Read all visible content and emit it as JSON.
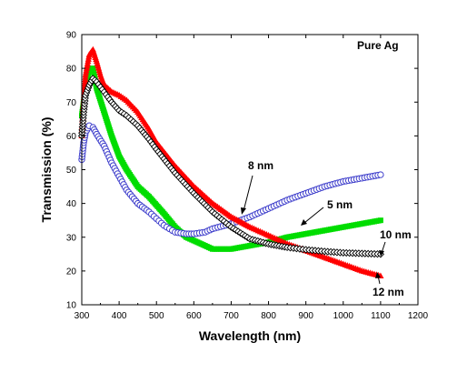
{
  "chart_data": {
    "type": "scatter",
    "title": "",
    "xlabel": "Wavelength (nm)",
    "ylabel": "Transmission (%)",
    "xlim": [
      300,
      1200
    ],
    "ylim": [
      10,
      90
    ],
    "x_ticks": [
      300,
      400,
      500,
      600,
      700,
      800,
      900,
      1000,
      1100,
      1200
    ],
    "y_ticks": [
      10,
      20,
      30,
      40,
      50,
      60,
      70,
      80,
      90
    ],
    "grid": false,
    "legend": "none",
    "annotations": {
      "inset": "Pure Ag",
      "label_5": "5 nm",
      "label_8": "8 nm",
      "label_10": "10 nm",
      "label_12": "12 nm"
    },
    "series": [
      {
        "key": "pure",
        "color": "#00dd00",
        "marker": "square",
        "points": [
          [
            300,
            66
          ],
          [
            310,
            74
          ],
          [
            320,
            80
          ],
          [
            330,
            80
          ],
          [
            340,
            74
          ],
          [
            360,
            67
          ],
          [
            380,
            60
          ],
          [
            400,
            54
          ],
          [
            420,
            50
          ],
          [
            450,
            45
          ],
          [
            480,
            42
          ],
          [
            500,
            39.5
          ],
          [
            520,
            37
          ],
          [
            550,
            33
          ],
          [
            580,
            30
          ],
          [
            600,
            29
          ],
          [
            620,
            28
          ],
          [
            650,
            26.5
          ],
          [
            700,
            26.5
          ],
          [
            750,
            27.5
          ],
          [
            800,
            28.5
          ],
          [
            850,
            30
          ],
          [
            900,
            31
          ],
          [
            950,
            32
          ],
          [
            1000,
            33
          ],
          [
            1050,
            34
          ],
          [
            1100,
            35
          ]
        ]
      },
      {
        "key": "5nm",
        "color": "#4040cc",
        "marker": "circle",
        "points": [
          [
            300,
            53
          ],
          [
            305,
            58
          ],
          [
            310,
            61
          ],
          [
            320,
            63
          ],
          [
            330,
            62.5
          ],
          [
            340,
            60.5
          ],
          [
            360,
            57
          ],
          [
            380,
            52
          ],
          [
            400,
            48
          ],
          [
            420,
            44
          ],
          [
            450,
            40
          ],
          [
            480,
            37.5
          ],
          [
            500,
            35.5
          ],
          [
            520,
            33.5
          ],
          [
            550,
            31.5
          ],
          [
            580,
            31
          ],
          [
            600,
            31
          ],
          [
            630,
            31.5
          ],
          [
            650,
            32.5
          ],
          [
            700,
            34
          ],
          [
            750,
            36
          ],
          [
            800,
            38.5
          ],
          [
            850,
            41
          ],
          [
            900,
            43
          ],
          [
            950,
            45
          ],
          [
            1000,
            46.5
          ],
          [
            1050,
            47.5
          ],
          [
            1100,
            48.5
          ]
        ]
      },
      {
        "key": "8nm",
        "color": "#ff0000",
        "marker": "triangle",
        "points": [
          [
            300,
            60
          ],
          [
            305,
            70
          ],
          [
            310,
            78
          ],
          [
            320,
            84
          ],
          [
            330,
            85.5
          ],
          [
            340,
            82
          ],
          [
            350,
            78
          ],
          [
            360,
            75
          ],
          [
            380,
            73
          ],
          [
            400,
            72
          ],
          [
            420,
            70.5
          ],
          [
            450,
            67
          ],
          [
            480,
            62
          ],
          [
            500,
            58
          ],
          [
            550,
            51
          ],
          [
            600,
            45
          ],
          [
            650,
            40
          ],
          [
            700,
            36
          ],
          [
            750,
            33
          ],
          [
            800,
            30.5
          ],
          [
            850,
            28
          ],
          [
            900,
            26
          ],
          [
            950,
            24
          ],
          [
            1000,
            22
          ],
          [
            1050,
            20
          ],
          [
            1100,
            18.5
          ]
        ]
      },
      {
        "key": "10nm",
        "color": "#000000",
        "marker": "diamond",
        "points": [
          [
            300,
            60
          ],
          [
            305,
            67
          ],
          [
            310,
            72
          ],
          [
            320,
            75
          ],
          [
            330,
            77
          ],
          [
            340,
            76
          ],
          [
            360,
            73
          ],
          [
            380,
            70
          ],
          [
            400,
            67.5
          ],
          [
            420,
            66
          ],
          [
            450,
            63
          ],
          [
            480,
            59
          ],
          [
            500,
            56
          ],
          [
            550,
            49
          ],
          [
            600,
            43
          ],
          [
            650,
            37.5
          ],
          [
            700,
            33
          ],
          [
            750,
            29.5
          ],
          [
            800,
            28
          ],
          [
            850,
            27
          ],
          [
            900,
            26.3
          ],
          [
            950,
            25.8
          ],
          [
            1000,
            25.4
          ],
          [
            1050,
            25.2
          ],
          [
            1100,
            25
          ]
        ]
      }
    ]
  }
}
